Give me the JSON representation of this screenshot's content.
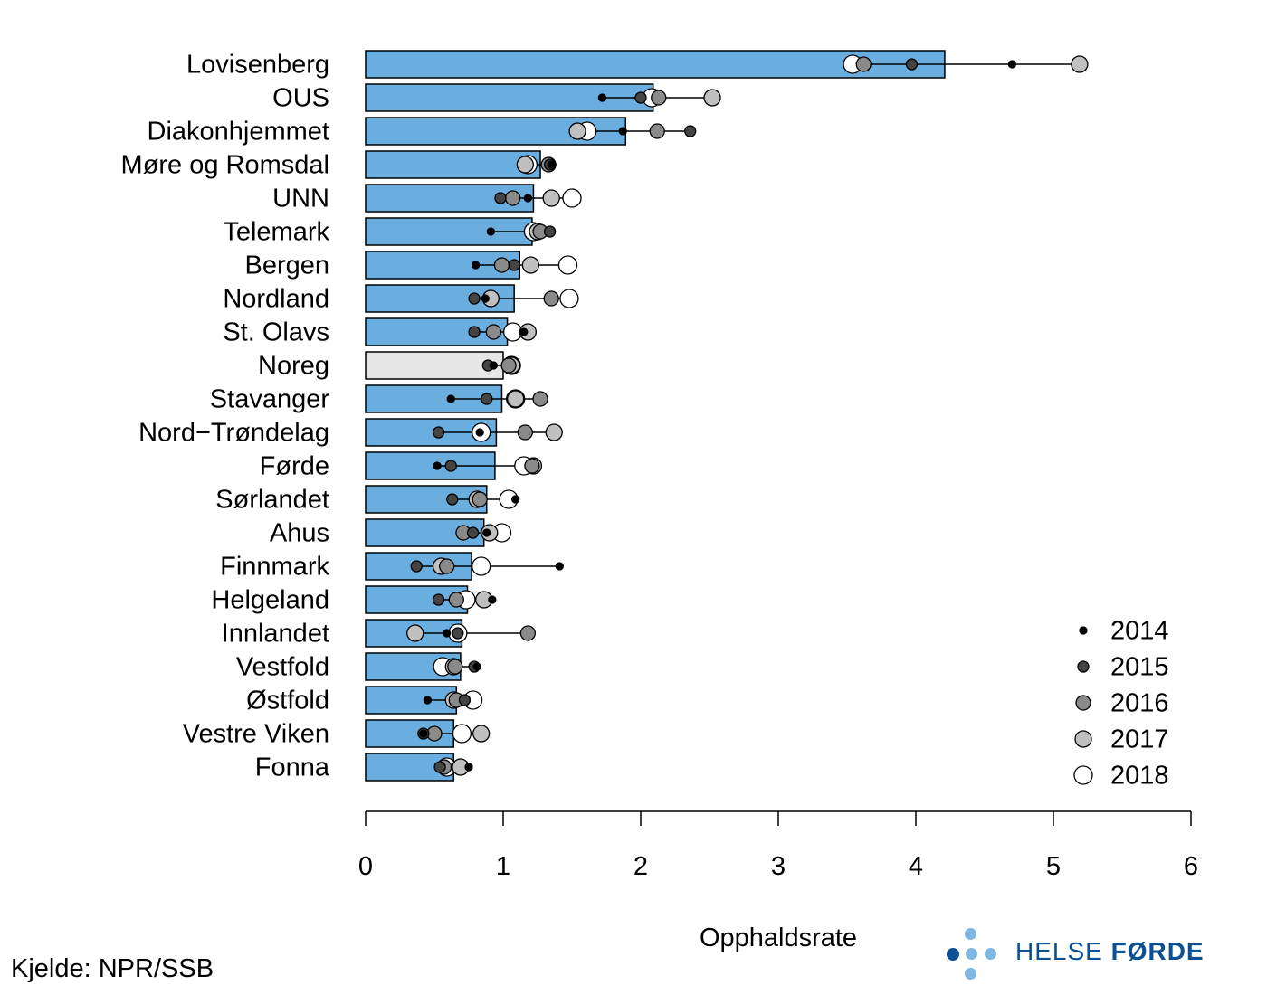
{
  "chart_data": {
    "type": "bar",
    "orientation": "horizontal",
    "xlabel": "Opphaldsrate",
    "xlim": [
      0,
      6
    ],
    "xticks": [
      0,
      1,
      2,
      3,
      4,
      5,
      6
    ],
    "bar_color": "#6aaee0",
    "highlight_color": "#e6e6e6",
    "highlight_category": "Noreg",
    "categories": [
      "Lovisenberg",
      "OUS",
      "Diakonhjemmet",
      "Møre og Romsdal",
      "UNN",
      "Telemark",
      "Bergen",
      "Nordland",
      "St. Olavs",
      "Noreg",
      "Stavanger",
      "Nord−Trøndelag",
      "Førde",
      "Sørlandet",
      "Ahus",
      "Finnmark",
      "Helgeland",
      "Innlandet",
      "Vestfold",
      "Østfold",
      "Vestre Viken",
      "Fonna"
    ],
    "values": [
      4.21,
      2.09,
      1.89,
      1.27,
      1.22,
      1.21,
      1.12,
      1.08,
      1.03,
      1.0,
      0.99,
      0.95,
      0.94,
      0.88,
      0.86,
      0.77,
      0.74,
      0.7,
      0.69,
      0.66,
      0.64,
      0.64
    ],
    "series": [
      {
        "name": "2014",
        "values": [
          4.7,
          1.72,
          1.87,
          1.35,
          1.18,
          0.91,
          0.8,
          0.87,
          1.15,
          0.93,
          0.62,
          0.83,
          0.52,
          1.09,
          0.88,
          1.41,
          0.92,
          0.59,
          0.81,
          0.45,
          0.42,
          0.75
        ]
      },
      {
        "name": "2015",
        "values": [
          3.97,
          2.0,
          2.36,
          1.34,
          0.98,
          1.34,
          1.08,
          0.79,
          0.79,
          0.89,
          0.88,
          0.53,
          0.62,
          0.63,
          0.78,
          0.37,
          0.53,
          0.67,
          0.79,
          0.72,
          0.42,
          0.54
        ]
      },
      {
        "name": "2016",
        "values": [
          3.62,
          2.13,
          2.12,
          1.33,
          1.07,
          1.27,
          0.99,
          1.35,
          0.93,
          1.04,
          1.27,
          1.16,
          1.21,
          0.83,
          0.71,
          0.59,
          0.66,
          1.18,
          0.65,
          0.66,
          0.5,
          0.57
        ]
      },
      {
        "name": "2017",
        "values": [
          5.19,
          2.52,
          1.54,
          1.16,
          1.35,
          1.25,
          1.2,
          0.91,
          1.18,
          1.06,
          1.09,
          1.37,
          1.22,
          0.81,
          0.9,
          0.55,
          0.86,
          0.36,
          0.64,
          0.64,
          0.84,
          0.69
        ]
      },
      {
        "name": "2018",
        "values": [
          3.54,
          2.08,
          1.61,
          1.18,
          1.5,
          1.22,
          1.47,
          1.48,
          1.07,
          1.06,
          1.09,
          0.84,
          1.15,
          1.04,
          0.99,
          0.84,
          0.73,
          0.67,
          0.56,
          0.78,
          0.7,
          0.59
        ]
      }
    ],
    "legend_position": "bottom-right",
    "source": "Kjelde: NPR/SSB"
  },
  "point_styles": {
    "2014": {
      "fill": "#000000",
      "stroke": "#000000",
      "r": 4
    },
    "2015": {
      "fill": "#444444",
      "stroke": "#000000",
      "r": 6
    },
    "2016": {
      "fill": "#8a8a8a",
      "stroke": "#000000",
      "r": 8
    },
    "2017": {
      "fill": "#c0c0c0",
      "stroke": "#000000",
      "r": 9
    },
    "2018": {
      "fill": "#ffffff",
      "stroke": "#000000",
      "r": 10
    }
  },
  "logo": {
    "text_regular": "HELSE ",
    "text_bold": "FØRDE",
    "color_dark": "#0c4f93",
    "color_light": "#7fb7e3"
  }
}
